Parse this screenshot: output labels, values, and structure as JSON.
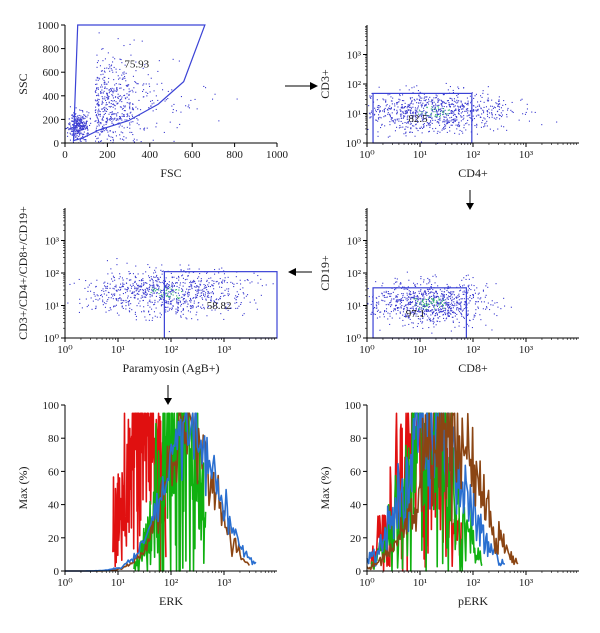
{
  "figure": {
    "flow_arrow_symbol": "arrow"
  },
  "chart_data": [
    {
      "id": "p1",
      "type": "scatter",
      "xlabel": "FSC",
      "ylabel": "SSC",
      "xscale": "linear",
      "yscale": "linear",
      "xlim": [
        0,
        1000
      ],
      "ylim": [
        0,
        1000
      ],
      "xticks": [
        "0",
        "200",
        "400",
        "600",
        "800",
        "1000"
      ],
      "yticks": [
        "0",
        "200",
        "400",
        "600",
        "800",
        "1000"
      ],
      "gate": {
        "shape": "polygon",
        "label": "75.93",
        "vertices": [
          [
            40,
            20
          ],
          [
            60,
            1000
          ],
          [
            660,
            1000
          ],
          [
            560,
            520
          ],
          [
            440,
            330
          ],
          [
            300,
            190
          ],
          [
            160,
            110
          ],
          [
            80,
            40
          ]
        ]
      },
      "point_color": "#3a3ad0",
      "cloud": {
        "x_center": 140,
        "x_spread": 120,
        "y_center": 280,
        "y_spread": 220,
        "dense_core": [
          60,
          140
        ]
      }
    },
    {
      "id": "p2",
      "type": "scatter",
      "xlabel": "CD4+",
      "ylabel": "CD3+",
      "xscale": "log",
      "yscale": "log",
      "xlim": [
        1,
        10000
      ],
      "ylim": [
        1,
        10000
      ],
      "xticks": [
        "10⁰",
        "10¹",
        "10²",
        "10³"
      ],
      "yticks": [
        "10⁰",
        "10¹",
        "10²",
        "10³"
      ],
      "gate": {
        "shape": "rect",
        "label": "82.5",
        "x": [
          1.3,
          95
        ],
        "y": [
          1,
          48
        ]
      },
      "point_color": "#3a3ad0",
      "cloud": {
        "x_center": 18,
        "x_spread_dec": 0.7,
        "y_center": 12,
        "y_spread_dec": 0.35
      }
    },
    {
      "id": "p3",
      "type": "scatter",
      "xlabel": "CD8+",
      "ylabel": "CD19+",
      "xscale": "log",
      "yscale": "log",
      "xlim": [
        1,
        10000
      ],
      "ylim": [
        1,
        10000
      ],
      "xticks": [
        "10⁰",
        "10¹",
        "10²",
        "10³"
      ],
      "yticks": [
        "10⁰",
        "10¹",
        "10²",
        "10³"
      ],
      "gate": {
        "shape": "rect",
        "label": "97.1",
        "x": [
          1.3,
          75
        ],
        "y": [
          1,
          35
        ]
      },
      "point_color": "#3a3ad0",
      "cloud": {
        "x_center": 15,
        "x_spread_dec": 0.55,
        "y_center": 12,
        "y_spread_dec": 0.32
      }
    },
    {
      "id": "p4",
      "type": "scatter",
      "xlabel": "Paramyosin (AgB+)",
      "ylabel": "CD3+/CD4+/CD8+/CD19+",
      "xscale": "log",
      "yscale": "log",
      "xlim": [
        1,
        10000
      ],
      "ylim": [
        1,
        10000
      ],
      "xticks": [
        "10⁰",
        "10¹",
        "10²",
        "10³"
      ],
      "yticks": [
        "10⁰",
        "10¹",
        "10²",
        "10³"
      ],
      "gate": {
        "shape": "rect",
        "label": "58.82",
        "x": [
          75,
          10000
        ],
        "y": [
          1,
          110
        ]
      },
      "point_color": "#3a3ad0",
      "cloud": {
        "x_center": 80,
        "x_spread_dec": 0.75,
        "y_center": 25,
        "y_spread_dec": 0.35
      }
    },
    {
      "id": "p5",
      "type": "line",
      "xlabel": "ERK",
      "ylabel": "Max (%)",
      "xscale": "log",
      "yscale": "linear",
      "xlim": [
        1,
        10000
      ],
      "ylim": [
        0,
        100
      ],
      "xticks": [
        "10⁰",
        "10¹",
        "10²",
        "10³"
      ],
      "yticks": [
        "0",
        "20",
        "40",
        "60",
        "80",
        "100"
      ],
      "series": [
        {
          "color": "#e01010",
          "peak": 30,
          "spread_dec": 0.35,
          "noise": 0.55,
          "range": [
            8,
            80
          ]
        },
        {
          "color": "#10b010",
          "peak": 150,
          "spread_dec": 0.35,
          "noise": 0.6,
          "range": [
            20,
            450
          ]
        },
        {
          "color": "#8b4513",
          "peak": 220,
          "spread_dec": 0.45,
          "noise": 0.18,
          "range": [
            1,
            3000
          ]
        },
        {
          "color": "#2a6fd0",
          "peak": 240,
          "spread_dec": 0.5,
          "noise": 0.15,
          "range": [
            1,
            4000
          ]
        }
      ]
    },
    {
      "id": "p6",
      "type": "line",
      "xlabel": "pERK",
      "ylabel": "Max (%)",
      "xscale": "log",
      "yscale": "linear",
      "xlim": [
        1,
        10000
      ],
      "ylim": [
        0,
        100
      ],
      "xticks": [
        "10⁰",
        "10¹",
        "10²",
        "10³"
      ],
      "yticks": [
        "0",
        "20",
        "40",
        "60",
        "80",
        "100"
      ],
      "series": [
        {
          "color": "#e01010",
          "peak": 10,
          "spread_dec": 0.45,
          "noise": 0.5,
          "range": [
            1.2,
            60
          ]
        },
        {
          "color": "#10b010",
          "peak": 15,
          "spread_dec": 0.45,
          "noise": 0.5,
          "range": [
            1.2,
            150
          ]
        },
        {
          "color": "#2a6fd0",
          "peak": 18,
          "spread_dec": 0.55,
          "noise": 0.3,
          "range": [
            1,
            400
          ]
        },
        {
          "color": "#8b4513",
          "peak": 35,
          "spread_dec": 0.55,
          "noise": 0.3,
          "range": [
            1,
            700
          ]
        }
      ]
    }
  ]
}
